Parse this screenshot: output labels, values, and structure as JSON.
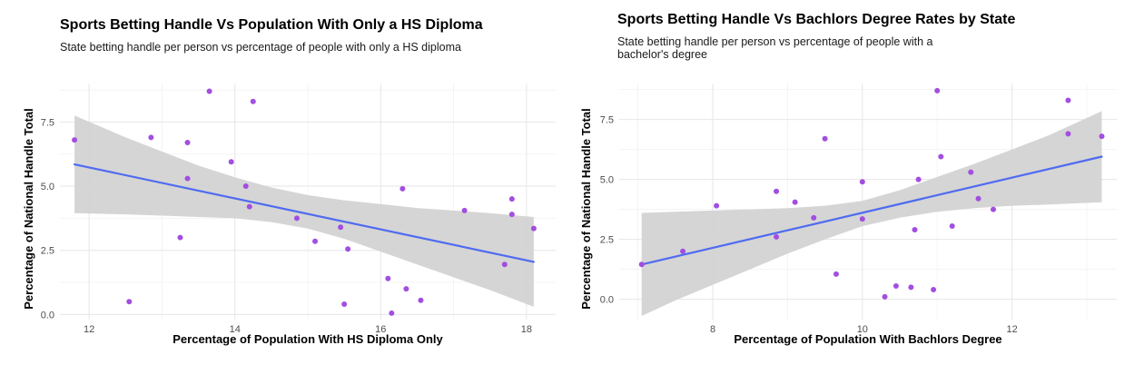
{
  "chart_data": [
    {
      "type": "scatter",
      "title": "Sports Betting Handle Vs Population With Only a HS Diploma",
      "subtitle": "State betting handle per person vs percentage of people with only a HS diploma",
      "xlabel": "Percentage of Population With HS Diploma Only",
      "ylabel": "Percentage of National Handle Total",
      "xlim": [
        11.6,
        18.4
      ],
      "ylim": [
        -0.2,
        9.0
      ],
      "x_ticks": [
        12,
        14,
        16,
        18
      ],
      "y_ticks": [
        0.0,
        2.5,
        5.0,
        7.5
      ],
      "y_tick_labels": [
        "0.0",
        "2.5",
        "5.0",
        "7.5"
      ],
      "point_color": "#a24ee0",
      "line_color": "#4f6bf0",
      "band_color": "#d3d3d3",
      "grid": true,
      "points": [
        {
          "x": 11.8,
          "y": 6.8
        },
        {
          "x": 12.55,
          "y": 0.5
        },
        {
          "x": 12.85,
          "y": 6.9
        },
        {
          "x": 13.25,
          "y": 3.0
        },
        {
          "x": 13.35,
          "y": 6.7
        },
        {
          "x": 13.35,
          "y": 5.3
        },
        {
          "x": 13.65,
          "y": 8.7
        },
        {
          "x": 13.95,
          "y": 5.95
        },
        {
          "x": 14.15,
          "y": 5.0
        },
        {
          "x": 14.2,
          "y": 4.2
        },
        {
          "x": 14.25,
          "y": 8.3
        },
        {
          "x": 14.85,
          "y": 3.75
        },
        {
          "x": 15.1,
          "y": 2.85
        },
        {
          "x": 15.45,
          "y": 3.4
        },
        {
          "x": 15.5,
          "y": 0.4
        },
        {
          "x": 15.55,
          "y": 2.55
        },
        {
          "x": 16.1,
          "y": 1.4
        },
        {
          "x": 16.15,
          "y": 0.05
        },
        {
          "x": 16.3,
          "y": 4.9
        },
        {
          "x": 16.35,
          "y": 1.0
        },
        {
          "x": 16.55,
          "y": 0.55
        },
        {
          "x": 17.15,
          "y": 4.05
        },
        {
          "x": 17.7,
          "y": 1.95
        },
        {
          "x": 17.8,
          "y": 4.5
        },
        {
          "x": 17.8,
          "y": 3.9
        },
        {
          "x": 18.1,
          "y": 3.35
        }
      ],
      "fit_line": {
        "x": [
          11.8,
          18.1
        ],
        "y": [
          5.85,
          2.05
        ]
      },
      "confidence_band": {
        "x": [
          11.8,
          12.5,
          13.0,
          13.5,
          14.0,
          14.5,
          15.0,
          15.5,
          16.0,
          16.5,
          17.0,
          17.5,
          18.1
        ],
        "upper": [
          7.75,
          6.9,
          6.35,
          5.8,
          5.35,
          4.95,
          4.65,
          4.45,
          4.3,
          4.15,
          4.05,
          3.95,
          3.8
        ],
        "lower": [
          3.95,
          3.9,
          3.85,
          3.8,
          3.75,
          3.6,
          3.35,
          2.95,
          2.45,
          1.95,
          1.45,
          0.95,
          0.3
        ]
      }
    },
    {
      "type": "scatter",
      "title": "Sports Betting Handle Vs Bachlors Degree Rates by State",
      "subtitle": "State betting handle per person vs percentage of people with a bachelor's degree",
      "xlabel": "Percentage of Population With Bachlors Degree",
      "ylabel": "Percentage of National Handle Total",
      "xlim": [
        6.75,
        13.4
      ],
      "ylim": [
        -0.85,
        9.0
      ],
      "x_ticks": [
        8,
        10,
        12
      ],
      "y_ticks": [
        0.0,
        2.5,
        5.0,
        7.5
      ],
      "y_tick_labels": [
        "0.0",
        "2.5",
        "5.0",
        "7.5"
      ],
      "point_color": "#a24ee0",
      "line_color": "#4f6bf0",
      "band_color": "#d3d3d3",
      "grid": true,
      "points": [
        {
          "x": 7.05,
          "y": 1.45
        },
        {
          "x": 7.6,
          "y": 2.0
        },
        {
          "x": 8.05,
          "y": 3.9
        },
        {
          "x": 8.85,
          "y": 4.5
        },
        {
          "x": 8.85,
          "y": 2.6
        },
        {
          "x": 9.1,
          "y": 4.05
        },
        {
          "x": 9.35,
          "y": 3.4
        },
        {
          "x": 9.5,
          "y": 6.7
        },
        {
          "x": 9.65,
          "y": 1.05
        },
        {
          "x": 10.0,
          "y": 4.9
        },
        {
          "x": 10.0,
          "y": 3.35
        },
        {
          "x": 10.3,
          "y": 0.1
        },
        {
          "x": 10.45,
          "y": 0.55
        },
        {
          "x": 10.65,
          "y": 0.5
        },
        {
          "x": 10.7,
          "y": 2.9
        },
        {
          "x": 10.75,
          "y": 5.0
        },
        {
          "x": 10.95,
          "y": 0.4
        },
        {
          "x": 11.0,
          "y": 8.7
        },
        {
          "x": 11.05,
          "y": 5.95
        },
        {
          "x": 11.2,
          "y": 3.05
        },
        {
          "x": 11.45,
          "y": 5.3
        },
        {
          "x": 11.55,
          "y": 4.2
        },
        {
          "x": 11.75,
          "y": 3.75
        },
        {
          "x": 12.75,
          "y": 8.3
        },
        {
          "x": 12.75,
          "y": 6.9
        },
        {
          "x": 13.2,
          "y": 6.8
        }
      ],
      "fit_line": {
        "x": [
          7.05,
          13.2
        ],
        "y": [
          1.45,
          5.95
        ]
      },
      "confidence_band": {
        "x": [
          7.05,
          7.5,
          8.0,
          8.5,
          9.0,
          9.5,
          10.0,
          10.5,
          11.0,
          11.5,
          12.0,
          12.5,
          13.2
        ],
        "upper": [
          3.6,
          3.65,
          3.7,
          3.75,
          3.8,
          3.9,
          4.1,
          4.55,
          5.1,
          5.65,
          6.25,
          6.85,
          7.85
        ],
        "lower": [
          -0.7,
          -0.05,
          0.6,
          1.25,
          1.9,
          2.5,
          3.05,
          3.4,
          3.65,
          3.8,
          3.9,
          3.95,
          4.05
        ]
      }
    }
  ]
}
